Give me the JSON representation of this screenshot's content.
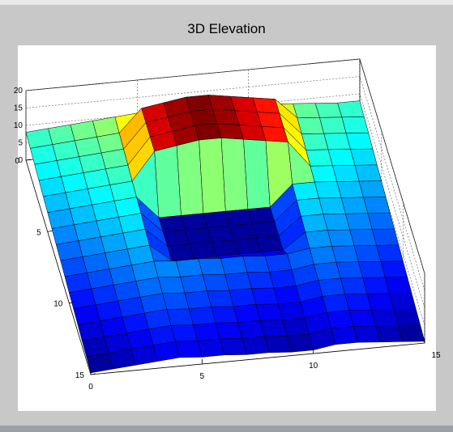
{
  "chart_data": {
    "type": "surface3d",
    "title": "3D Elevation",
    "xlabel": "",
    "ylabel": "",
    "zlabel": "",
    "colormap": "jet",
    "grid": true,
    "x_ticks": [
      "0",
      "5",
      "10",
      "15"
    ],
    "y_ticks": [
      "0",
      "5",
      "10",
      "15"
    ],
    "z_ticks": [
      "0",
      "5",
      "10",
      "15",
      "20"
    ],
    "xlim": [
      0,
      15
    ],
    "ylim": [
      0,
      15
    ],
    "zlim": [
      0,
      20
    ],
    "z": [
      [
        8,
        8.5,
        9,
        9.5,
        10,
        10.5,
        11,
        11.5,
        11,
        10.5,
        10,
        9.5,
        9,
        8.5,
        8,
        8
      ],
      [
        7.5,
        8,
        8.5,
        9,
        9.5,
        16,
        17,
        18,
        18,
        17,
        16,
        15,
        9,
        8.5,
        8,
        7.5
      ],
      [
        7,
        7.5,
        8,
        8.5,
        9,
        16,
        17,
        18,
        18,
        17,
        16,
        15,
        8.5,
        8,
        7.5,
        7
      ],
      [
        6.5,
        7,
        7.5,
        8,
        8.5,
        16,
        17,
        18,
        18,
        17,
        16,
        15,
        8,
        7.5,
        7,
        6.5
      ],
      [
        6,
        6.5,
        7,
        7.5,
        8,
        16,
        17,
        18,
        18,
        17,
        16,
        15,
        7.5,
        7,
        6.5,
        6
      ],
      [
        5.5,
        6,
        6.5,
        7,
        7.5,
        1,
        1,
        1,
        1,
        1,
        1,
        7,
        7,
        6.5,
        6,
        5.5
      ],
      [
        5,
        5.5,
        6,
        6.5,
        7,
        1,
        1,
        1,
        1,
        1,
        1,
        6.5,
        6.5,
        6,
        5.5,
        5
      ],
      [
        4.5,
        5,
        5.5,
        6,
        6.5,
        1,
        1,
        1,
        1,
        1,
        1,
        6,
        6,
        5.5,
        5,
        4.5
      ],
      [
        4,
        4.5,
        5,
        5.5,
        6,
        1,
        1,
        1,
        1,
        1,
        1,
        5.5,
        5.5,
        5,
        4.5,
        4
      ],
      [
        3.5,
        4,
        4.5,
        5,
        5.5,
        5,
        5,
        4.5,
        4.5,
        4,
        4,
        5,
        5,
        4.5,
        4,
        3.5
      ],
      [
        3,
        3.5,
        4,
        4.5,
        5,
        4.5,
        4.5,
        4,
        4,
        3.5,
        3.5,
        4.5,
        4.5,
        4,
        3.5,
        3
      ],
      [
        2.5,
        3,
        3.5,
        4,
        4.5,
        4,
        4,
        3.5,
        3.5,
        3,
        3,
        4,
        4,
        3.5,
        3,
        2.5
      ],
      [
        2,
        2.5,
        3,
        3.5,
        4,
        3.5,
        3.5,
        3,
        3,
        2.5,
        2.5,
        3.5,
        3.5,
        3,
        2.5,
        2
      ],
      [
        1.5,
        2,
        2.5,
        3,
        3.5,
        3,
        3,
        2.5,
        2.5,
        2,
        2,
        3,
        3,
        2.5,
        2,
        1.5
      ],
      [
        1,
        1.5,
        2,
        2.5,
        3,
        2.5,
        2.5,
        2,
        2,
        1.5,
        1.5,
        2.5,
        2.5,
        2,
        1.5,
        1
      ],
      [
        0.5,
        1,
        1.5,
        2,
        2.5,
        2,
        2,
        1.5,
        1.5,
        1,
        1,
        2,
        2,
        1.5,
        1,
        0.5
      ]
    ]
  }
}
